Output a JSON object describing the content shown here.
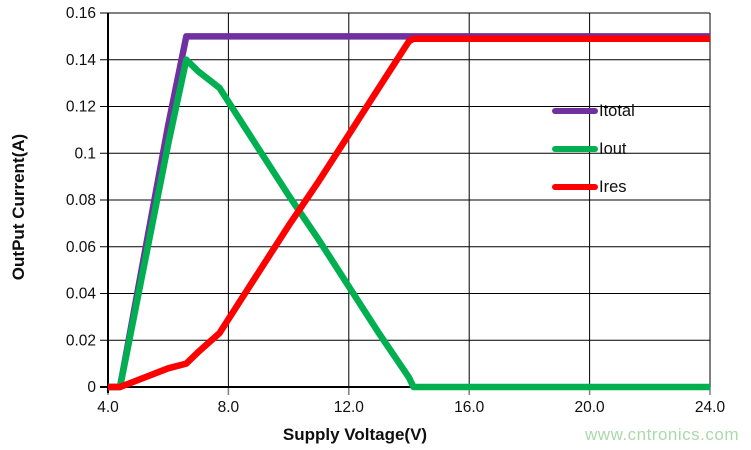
{
  "watermark": "www.cntronics.com",
  "chart_data": {
    "type": "line",
    "title": "",
    "xlabel": "Supply Voltage(V)",
    "ylabel": "OutPut Current(A)",
    "xlim": [
      4,
      24
    ],
    "ylim": [
      0,
      0.16
    ],
    "grid": true,
    "legend_position": "inside-right",
    "x_tick_values": [
      4,
      8,
      12,
      16,
      20,
      24
    ],
    "x_tick_labels": [
      "4.0",
      "8.0",
      "12.0",
      "16.0",
      "20.0",
      "24.0"
    ],
    "y_tick_values": [
      0,
      0.02,
      0.04,
      0.06,
      0.08,
      0.1,
      0.12,
      0.14,
      0.16
    ],
    "y_tick_labels": [
      "0",
      "0.02",
      "0.04",
      "0.06",
      "0.08",
      "0.1",
      "0.12",
      "0.14",
      "0.16"
    ],
    "x": [
      4.0,
      4.4,
      4.6,
      5.0,
      6.0,
      6.6,
      7.0,
      7.7,
      8.0,
      9.0,
      10.0,
      11.0,
      12.0,
      13.0,
      14.0,
      14.15,
      15.0,
      16.0,
      18.0,
      20.0,
      22.0,
      24.0
    ],
    "series": [
      {
        "name": "Itotal",
        "color": "#7030A0",
        "values": [
          0,
          0,
          0.014,
          0.042,
          0.112,
          0.15,
          0.15,
          0.15,
          0.15,
          0.15,
          0.15,
          0.15,
          0.15,
          0.15,
          0.15,
          0.15,
          0.15,
          0.15,
          0.15,
          0.15,
          0.15,
          0.15
        ]
      },
      {
        "name": "Iout",
        "color": "#00B050",
        "values": [
          0,
          0,
          0.013,
          0.039,
          0.104,
          0.14,
          0.135,
          0.128,
          0.122,
          0.102,
          0.082,
          0.063,
          0.043,
          0.023,
          0.004,
          0,
          0,
          0,
          0,
          0,
          0,
          0
        ]
      },
      {
        "name": "Ires",
        "color": "#FF0000",
        "values": [
          0,
          0,
          0.001,
          0.003,
          0.008,
          0.01,
          0.015,
          0.023,
          0.029,
          0.049,
          0.069,
          0.088,
          0.108,
          0.128,
          0.148,
          0.149,
          0.149,
          0.149,
          0.149,
          0.149,
          0.149,
          0.149
        ]
      }
    ]
  }
}
